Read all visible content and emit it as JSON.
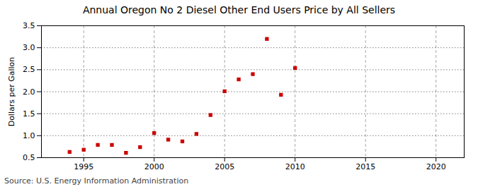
{
  "chart_data": {
    "type": "scatter",
    "title": "Annual Oregon No 2 Diesel Other End Users Price by All Sellers",
    "ylabel": "Dollars per Gallon",
    "caption": "Source: U.S. Energy Information Administration",
    "x": [
      1994,
      1995,
      1996,
      1997,
      1998,
      1999,
      2000,
      2001,
      2002,
      2003,
      2004,
      2005,
      2006,
      2007,
      2008,
      2009,
      2010
    ],
    "values": [
      0.63,
      0.68,
      0.79,
      0.79,
      0.61,
      0.74,
      1.06,
      0.91,
      0.87,
      1.04,
      1.47,
      2.01,
      2.28,
      2.4,
      3.2,
      1.93,
      2.54
    ],
    "color": "#cc0000",
    "marker": "square",
    "xlim": [
      1992,
      2022
    ],
    "ylim": [
      0.5,
      3.5
    ],
    "xticks": [
      1995,
      2000,
      2005,
      2010,
      2015,
      2020
    ],
    "yticks": [
      0.5,
      {
        "value": 1,
        "label": "1.0"
      },
      1.5,
      {
        "value": 2,
        "label": "2.0"
      },
      2.5,
      {
        "value": 3,
        "label": "3.0"
      },
      3.5
    ],
    "grid": true
  }
}
